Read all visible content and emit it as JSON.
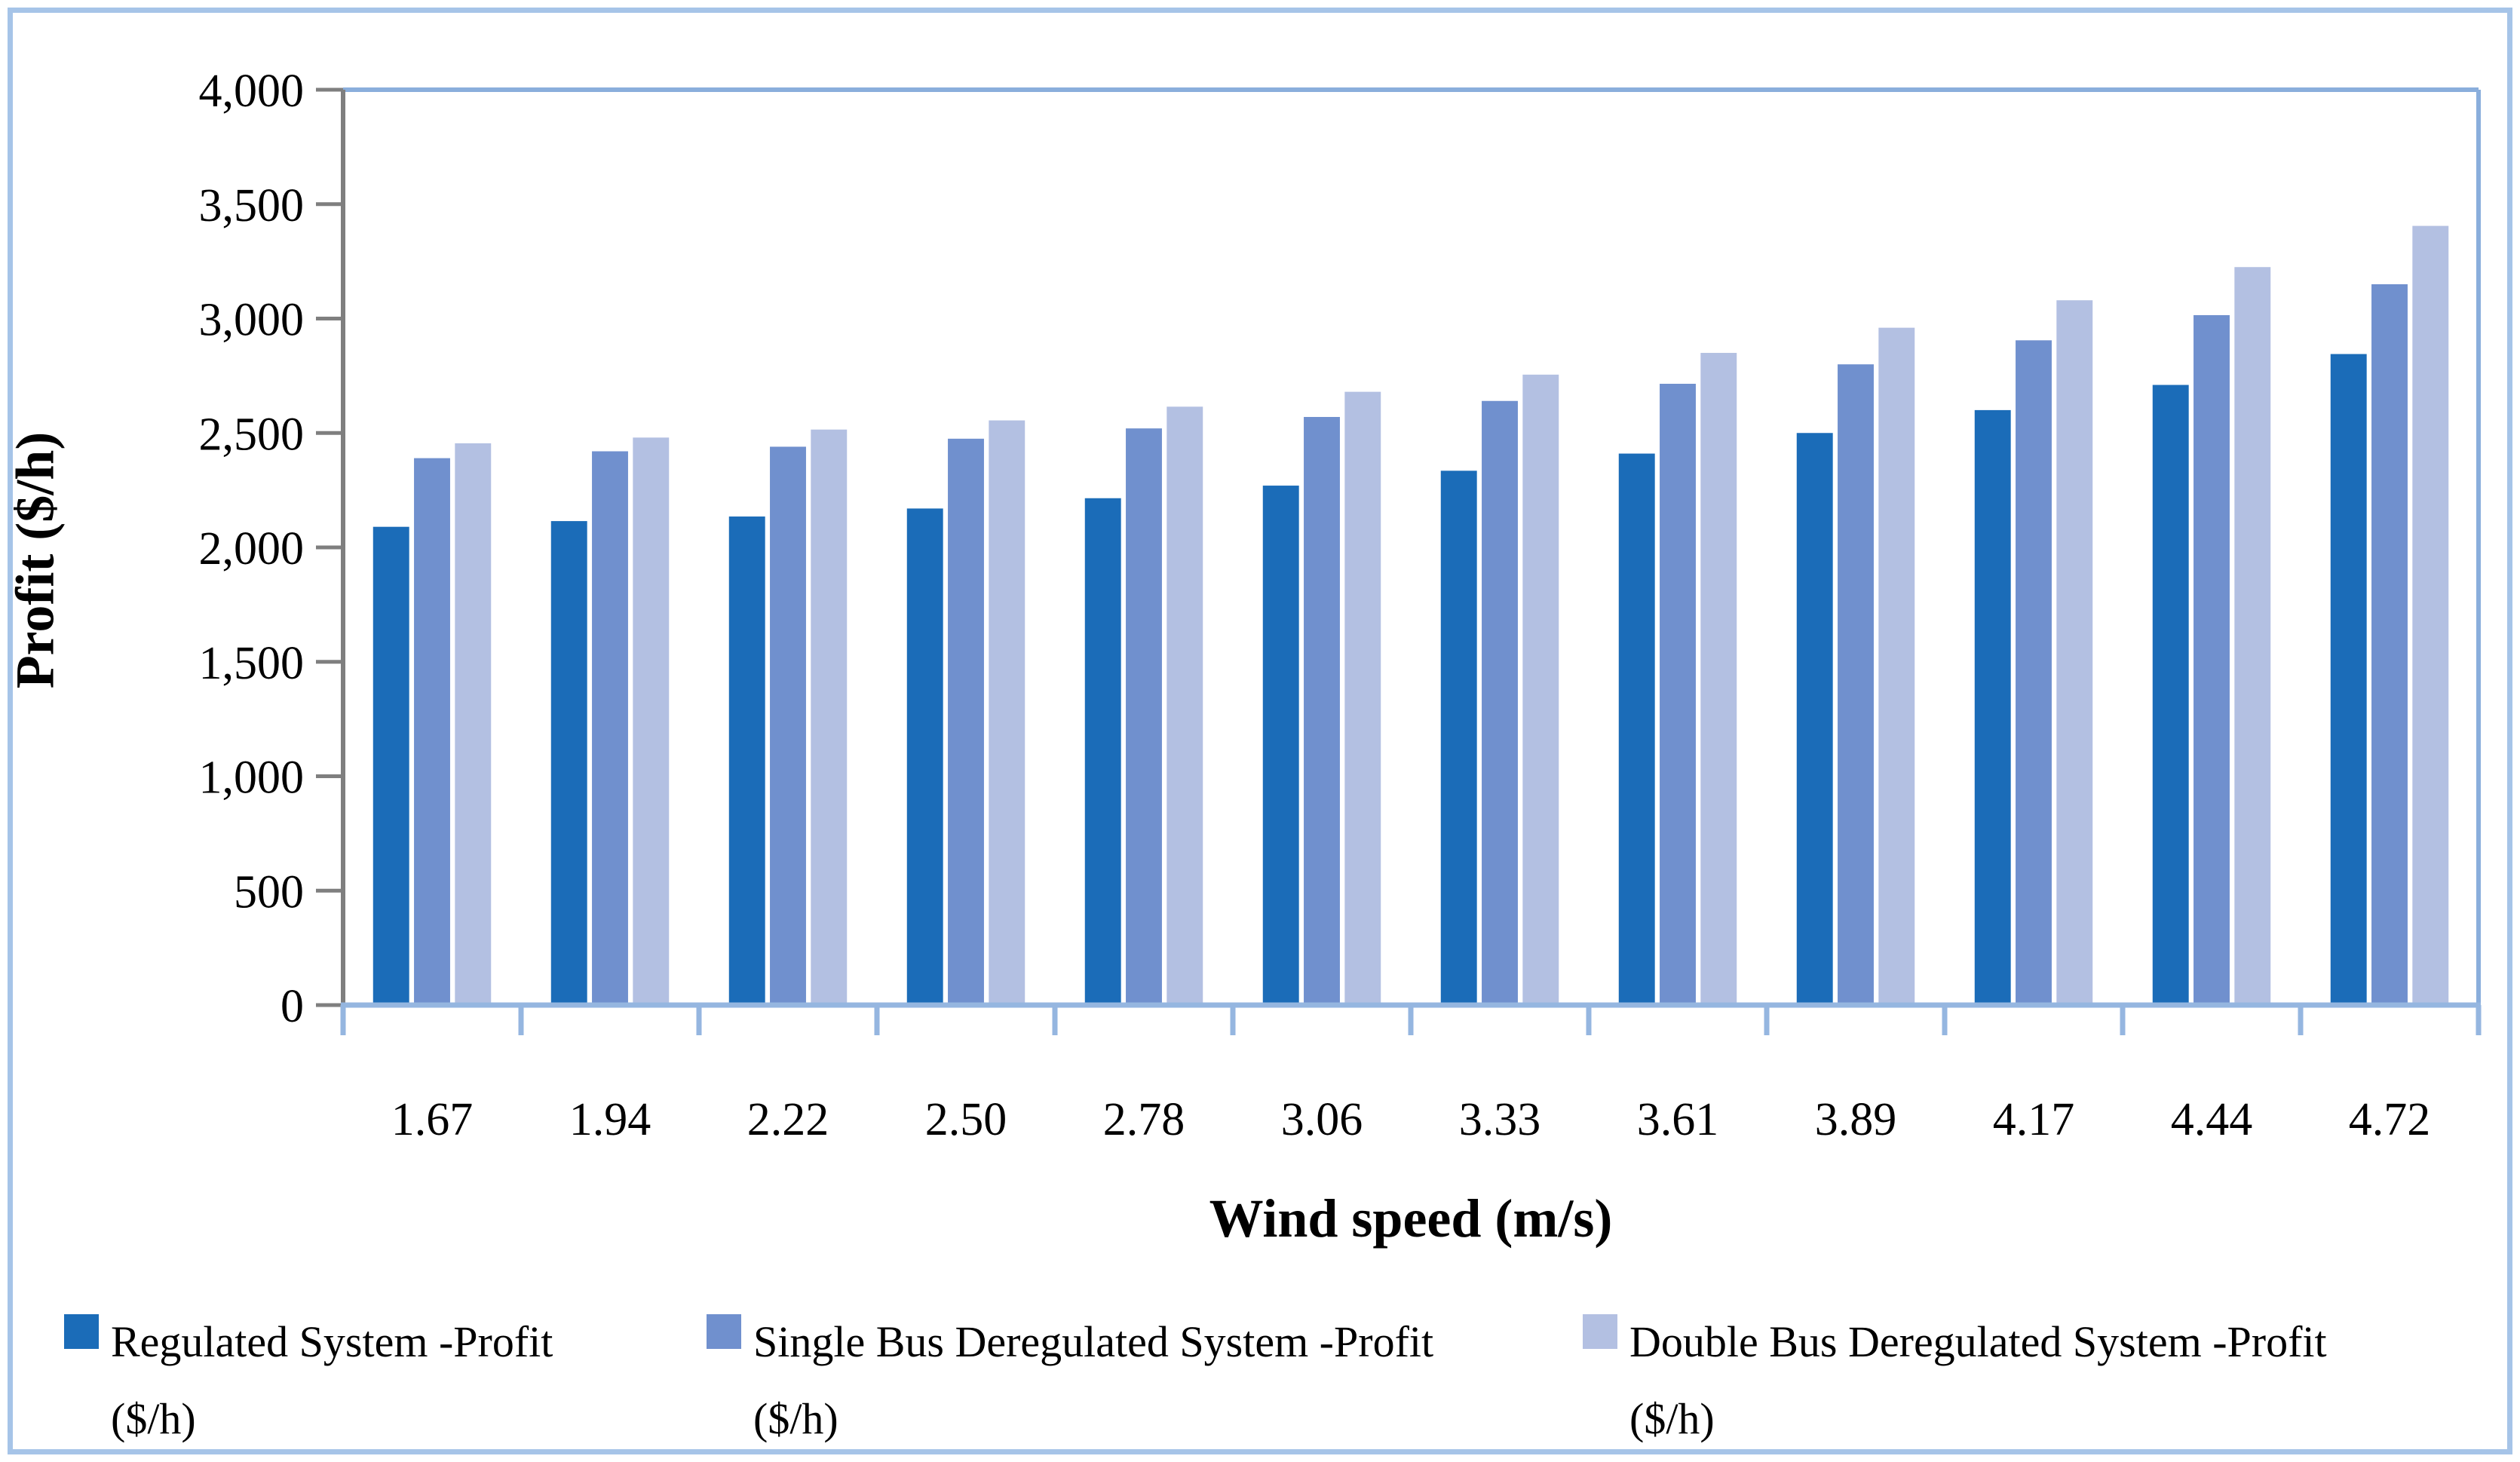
{
  "figure": {
    "border_color": "#a6c4e8",
    "background": "#ffffff"
  },
  "chart_data": {
    "type": "bar",
    "title": "",
    "xlabel": "Wind speed (m/s)",
    "ylabel": "Profit ($/h)",
    "ylim": [
      0,
      4000
    ],
    "ytick_step": 500,
    "ytick_labels": [
      "0",
      "500",
      "1,000",
      "1,500",
      "2,000",
      "2,500",
      "3,000",
      "3,500",
      "4,000"
    ],
    "grid": false,
    "legend_position": "bottom",
    "categories": [
      "1.67",
      "1.94",
      "2.22",
      "2.50",
      "2.78",
      "3.06",
      "3.33",
      "3.61",
      "3.89",
      "4.17",
      "4.44",
      "4.72"
    ],
    "series": [
      {
        "name": "Regulated System -Profit ($/h)",
        "legend_line1": "Regulated System -Profit",
        "legend_line2": "($/h)",
        "color": "#1b6cb8",
        "values": [
          2090,
          2115,
          2135,
          2170,
          2215,
          2270,
          2335,
          2410,
          2500,
          2600,
          2710,
          2845
        ]
      },
      {
        "name": "Single Bus Deregulated System -Profit ($/h)",
        "legend_line1": "Single Bus Deregulated System -Profit",
        "legend_line2": "($/h)",
        "color": "#7090ce",
        "values": [
          2390,
          2420,
          2440,
          2475,
          2520,
          2570,
          2640,
          2715,
          2800,
          2905,
          3015,
          3150
        ]
      },
      {
        "name": "Double Bus Deregulated System -Profit ($/h)",
        "legend_line1": "Double Bus Deregulated System -Profit",
        "legend_line2": "($/h)",
        "color": "#b3c0e2",
        "values": [
          2455,
          2480,
          2515,
          2555,
          2615,
          2680,
          2755,
          2850,
          2960,
          3080,
          3225,
          3405
        ]
      }
    ],
    "axis_colors": {
      "y_axis": "#7f7f7f",
      "x_axis": "#95b6e0",
      "plot_border": "#8aaedc"
    },
    "text_color": "#000000"
  }
}
